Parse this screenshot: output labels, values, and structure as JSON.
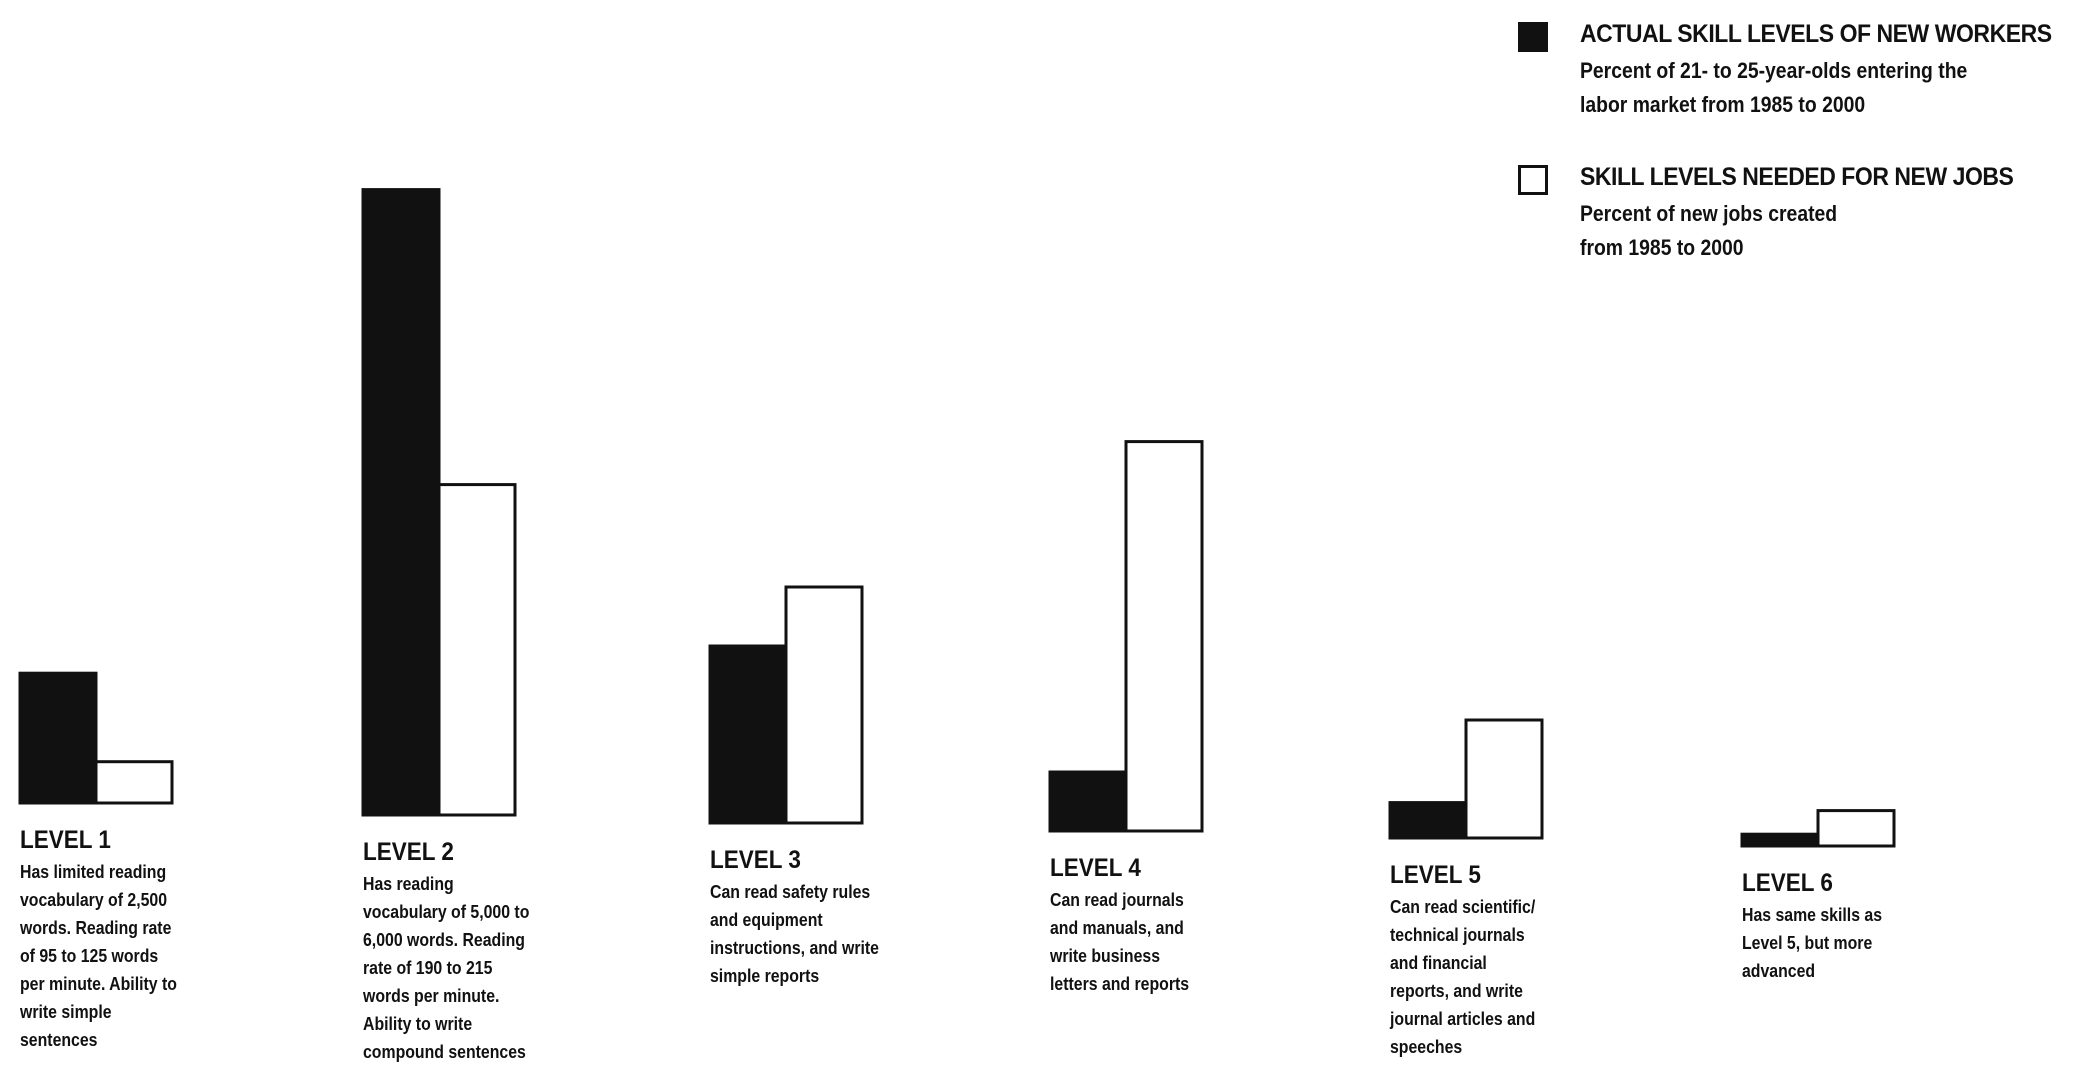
{
  "chart_data": {
    "type": "bar",
    "title": "",
    "xlabel": "",
    "ylabel": "",
    "categories": [
      "LEVEL 1",
      "LEVEL 2",
      "LEVEL 3",
      "LEVEL 4",
      "LEVEL 5",
      "LEVEL 6"
    ],
    "series": [
      {
        "name": "ACTUAL SKILL LEVELS OF NEW WORKERS",
        "description": [
          "Percent of 21- to 25-year-olds entering the",
          "labor market from 1985 to 2000"
        ],
        "fill": "#111111",
        "values": [
          11,
          53,
          15,
          5,
          3,
          1
        ]
      },
      {
        "name": "SKILL LEVELS NEEDED FOR NEW JOBS",
        "description": [
          "Percent of new jobs created",
          "from 1985 to 2000"
        ],
        "fill": "#ffffff",
        "values": [
          3.5,
          28,
          20,
          33,
          10,
          3
        ]
      }
    ],
    "ylim": [
      0,
      60
    ],
    "grid": false,
    "legend_position": "top-right",
    "category_descriptions": [
      [
        "Has limited reading",
        "vocabulary of 2,500",
        "words.  Reading rate",
        "of 95 to 125 words",
        "per minute.  Ability to",
        "write simple",
        "sentences"
      ],
      [
        "Has reading",
        "vocabulary of 5,000 to",
        "6,000 words.  Reading",
        "rate of 190 to 215",
        "words per minute.",
        "Ability to write",
        "compound sentences"
      ],
      [
        "Can read safety rules",
        "and equipment",
        "instructions, and write",
        "simple reports"
      ],
      [
        "Can read journals",
        "and manuals, and",
        "write business",
        "letters and reports"
      ],
      [
        "Can read scientific/",
        "technical journals",
        "and financial",
        "reports, and write",
        "journal articles and",
        "speeches"
      ],
      [
        "Has same skills as",
        "Level 5, but more",
        "advanced"
      ]
    ]
  }
}
